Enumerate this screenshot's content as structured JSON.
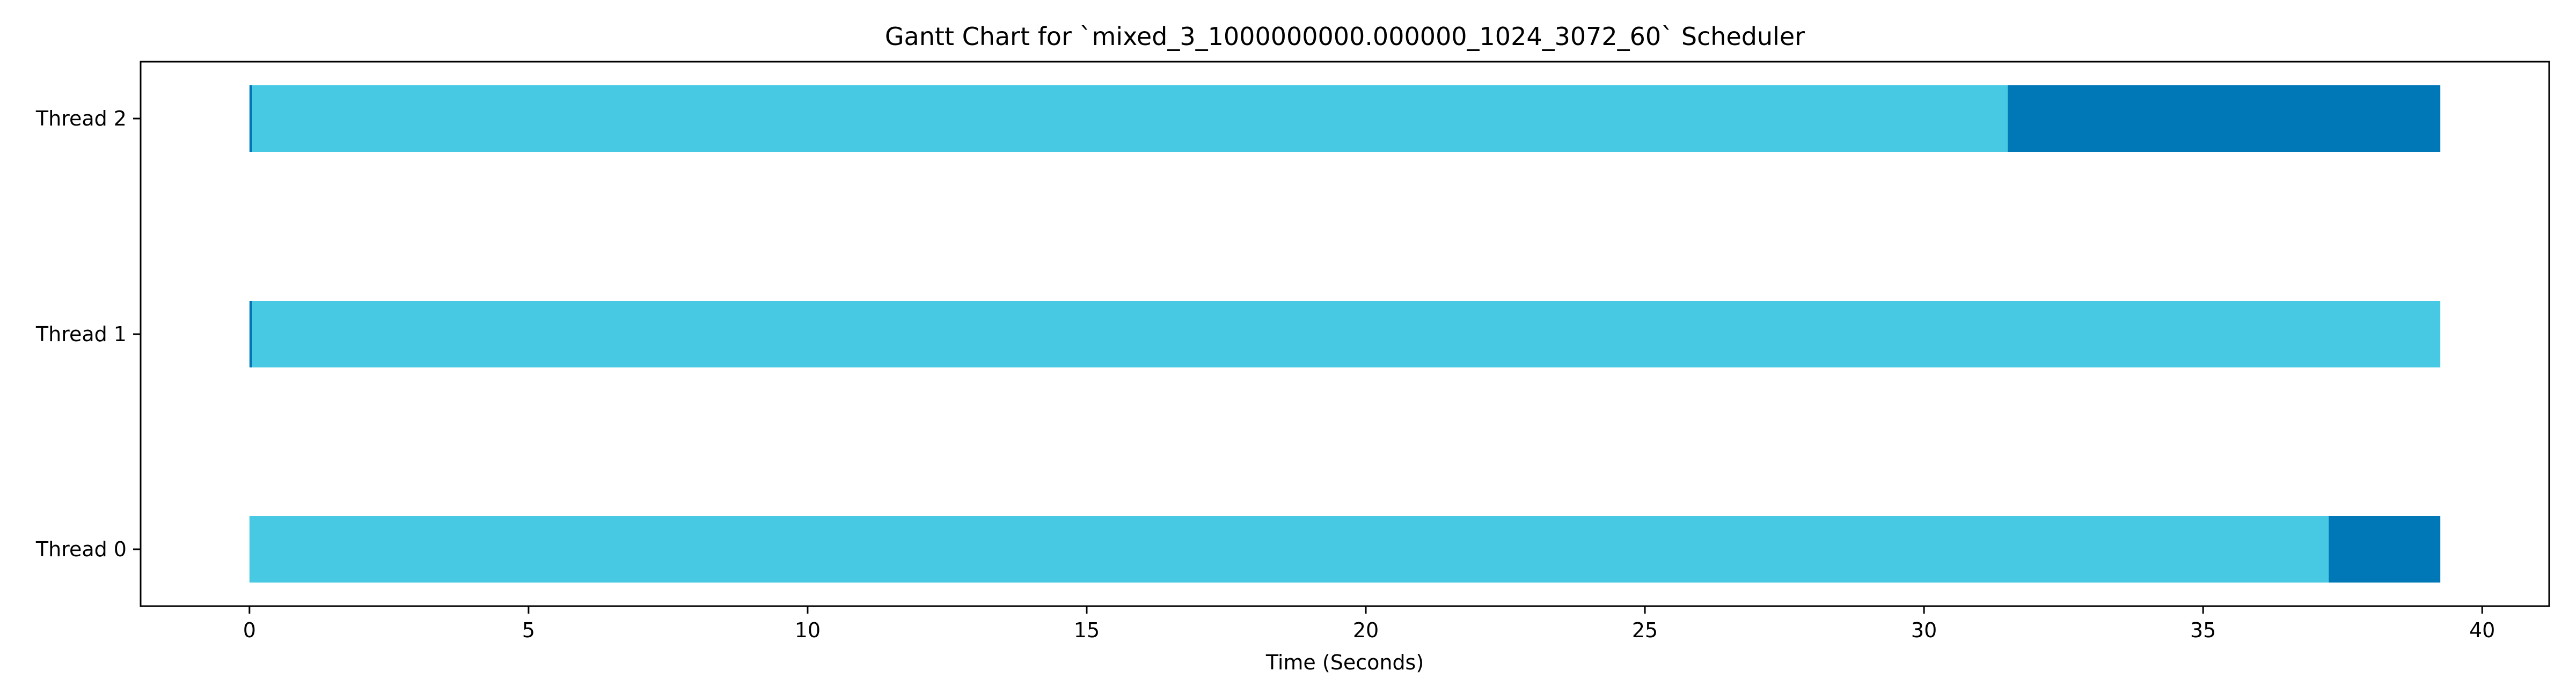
{
  "chart_data": {
    "type": "gantt",
    "title": "Gantt Chart for `mixed_3_1000000000.000000_1024_3072_60` Scheduler",
    "xlabel": "Time (Seconds)",
    "ylabel": "",
    "xlim": [
      -1.95,
      41.2
    ],
    "xticks": [
      "0",
      "5",
      "10",
      "15",
      "20",
      "25",
      "30",
      "35",
      "40"
    ],
    "xtick_values": [
      0,
      5,
      10,
      15,
      20,
      25,
      30,
      35,
      40
    ],
    "grid": false,
    "legend": "none",
    "colors": {
      "light": "#48c9e3",
      "dark": "#0077b6",
      "axis": "#000000"
    },
    "threads": [
      {
        "label": "Thread 2",
        "segments": [
          {
            "start": 0.0,
            "end": 0.05,
            "color": "dark"
          },
          {
            "start": 0.05,
            "end": 31.5,
            "color": "light"
          },
          {
            "start": 31.5,
            "end": 39.25,
            "color": "dark"
          }
        ]
      },
      {
        "label": "Thread 1",
        "segments": [
          {
            "start": 0.0,
            "end": 0.05,
            "color": "dark"
          },
          {
            "start": 0.05,
            "end": 39.25,
            "color": "light"
          }
        ]
      },
      {
        "label": "Thread 0",
        "segments": [
          {
            "start": 0.0,
            "end": 37.25,
            "color": "light"
          },
          {
            "start": 37.25,
            "end": 39.25,
            "color": "dark"
          }
        ]
      }
    ]
  }
}
